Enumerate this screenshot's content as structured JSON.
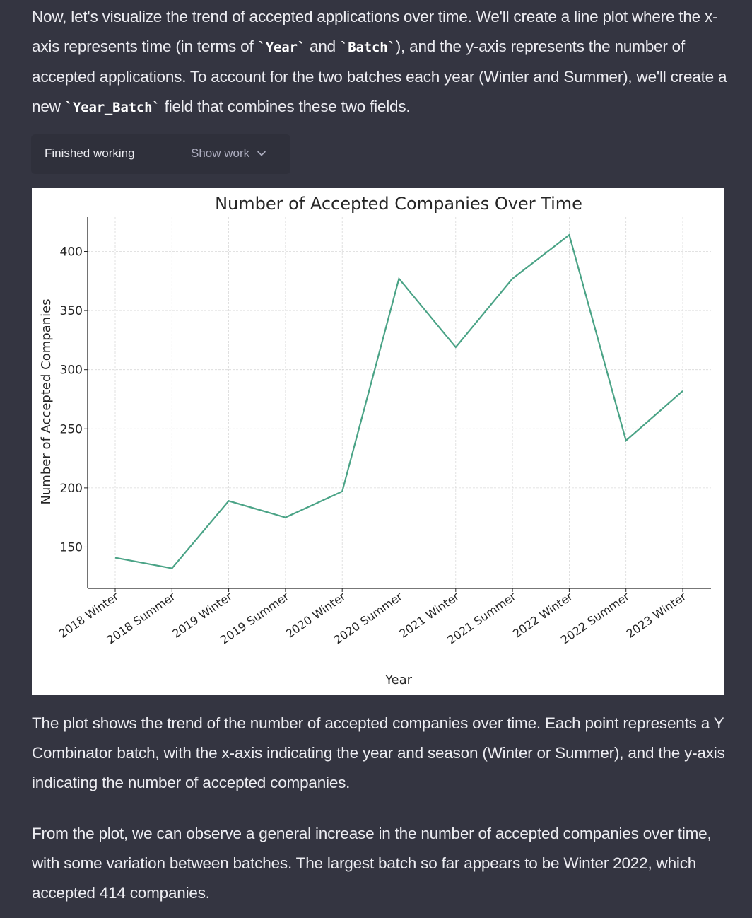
{
  "intro": {
    "t1": "Now, let's visualize the trend of accepted applications over time. We'll create a line plot where the x-axis represents time (in terms of ",
    "c1": "`Year`",
    "t2": " and ",
    "c2": "`Batch`",
    "t3": "), and the y-axis represents the number of accepted applications. To account for the two batches each year (Winter and Summer), we'll create a new ",
    "c3": "`Year_Batch`",
    "t4": " field that combines these two fields."
  },
  "work": {
    "status": "Finished working",
    "toggle": "Show work",
    "toggle_icon": "chevron-down-icon"
  },
  "chart_data": {
    "type": "line",
    "title": "Number of Accepted Companies Over Time",
    "xlabel": "Year",
    "ylabel": "Number of Accepted Companies",
    "categories": [
      "2018 Winter",
      "2018 Summer",
      "2019 Winter",
      "2019 Summer",
      "2020 Winter",
      "2020 Summer",
      "2021 Winter",
      "2021 Summer",
      "2022 Winter",
      "2022 Summer",
      "2023 Winter"
    ],
    "values": [
      141,
      132,
      189,
      175,
      197,
      377,
      319,
      377,
      414,
      240,
      282
    ],
    "yticks": [
      150,
      200,
      250,
      300,
      350,
      400
    ],
    "ylim": [
      115,
      429
    ],
    "grid": true,
    "line_color": "#4aa386"
  },
  "summary": {
    "p2": "The plot shows the trend of the number of accepted companies over time. Each point represents a Y Combinator batch, with the x-axis indicating the year and season (Winter or Summer), and the y-axis indicating the number of accepted companies.",
    "p3": "From the plot, we can observe a general increase in the number of accepted companies over time, with some variation between batches. The largest batch so far appears to be Winter 2022, which accepted 414 companies."
  }
}
